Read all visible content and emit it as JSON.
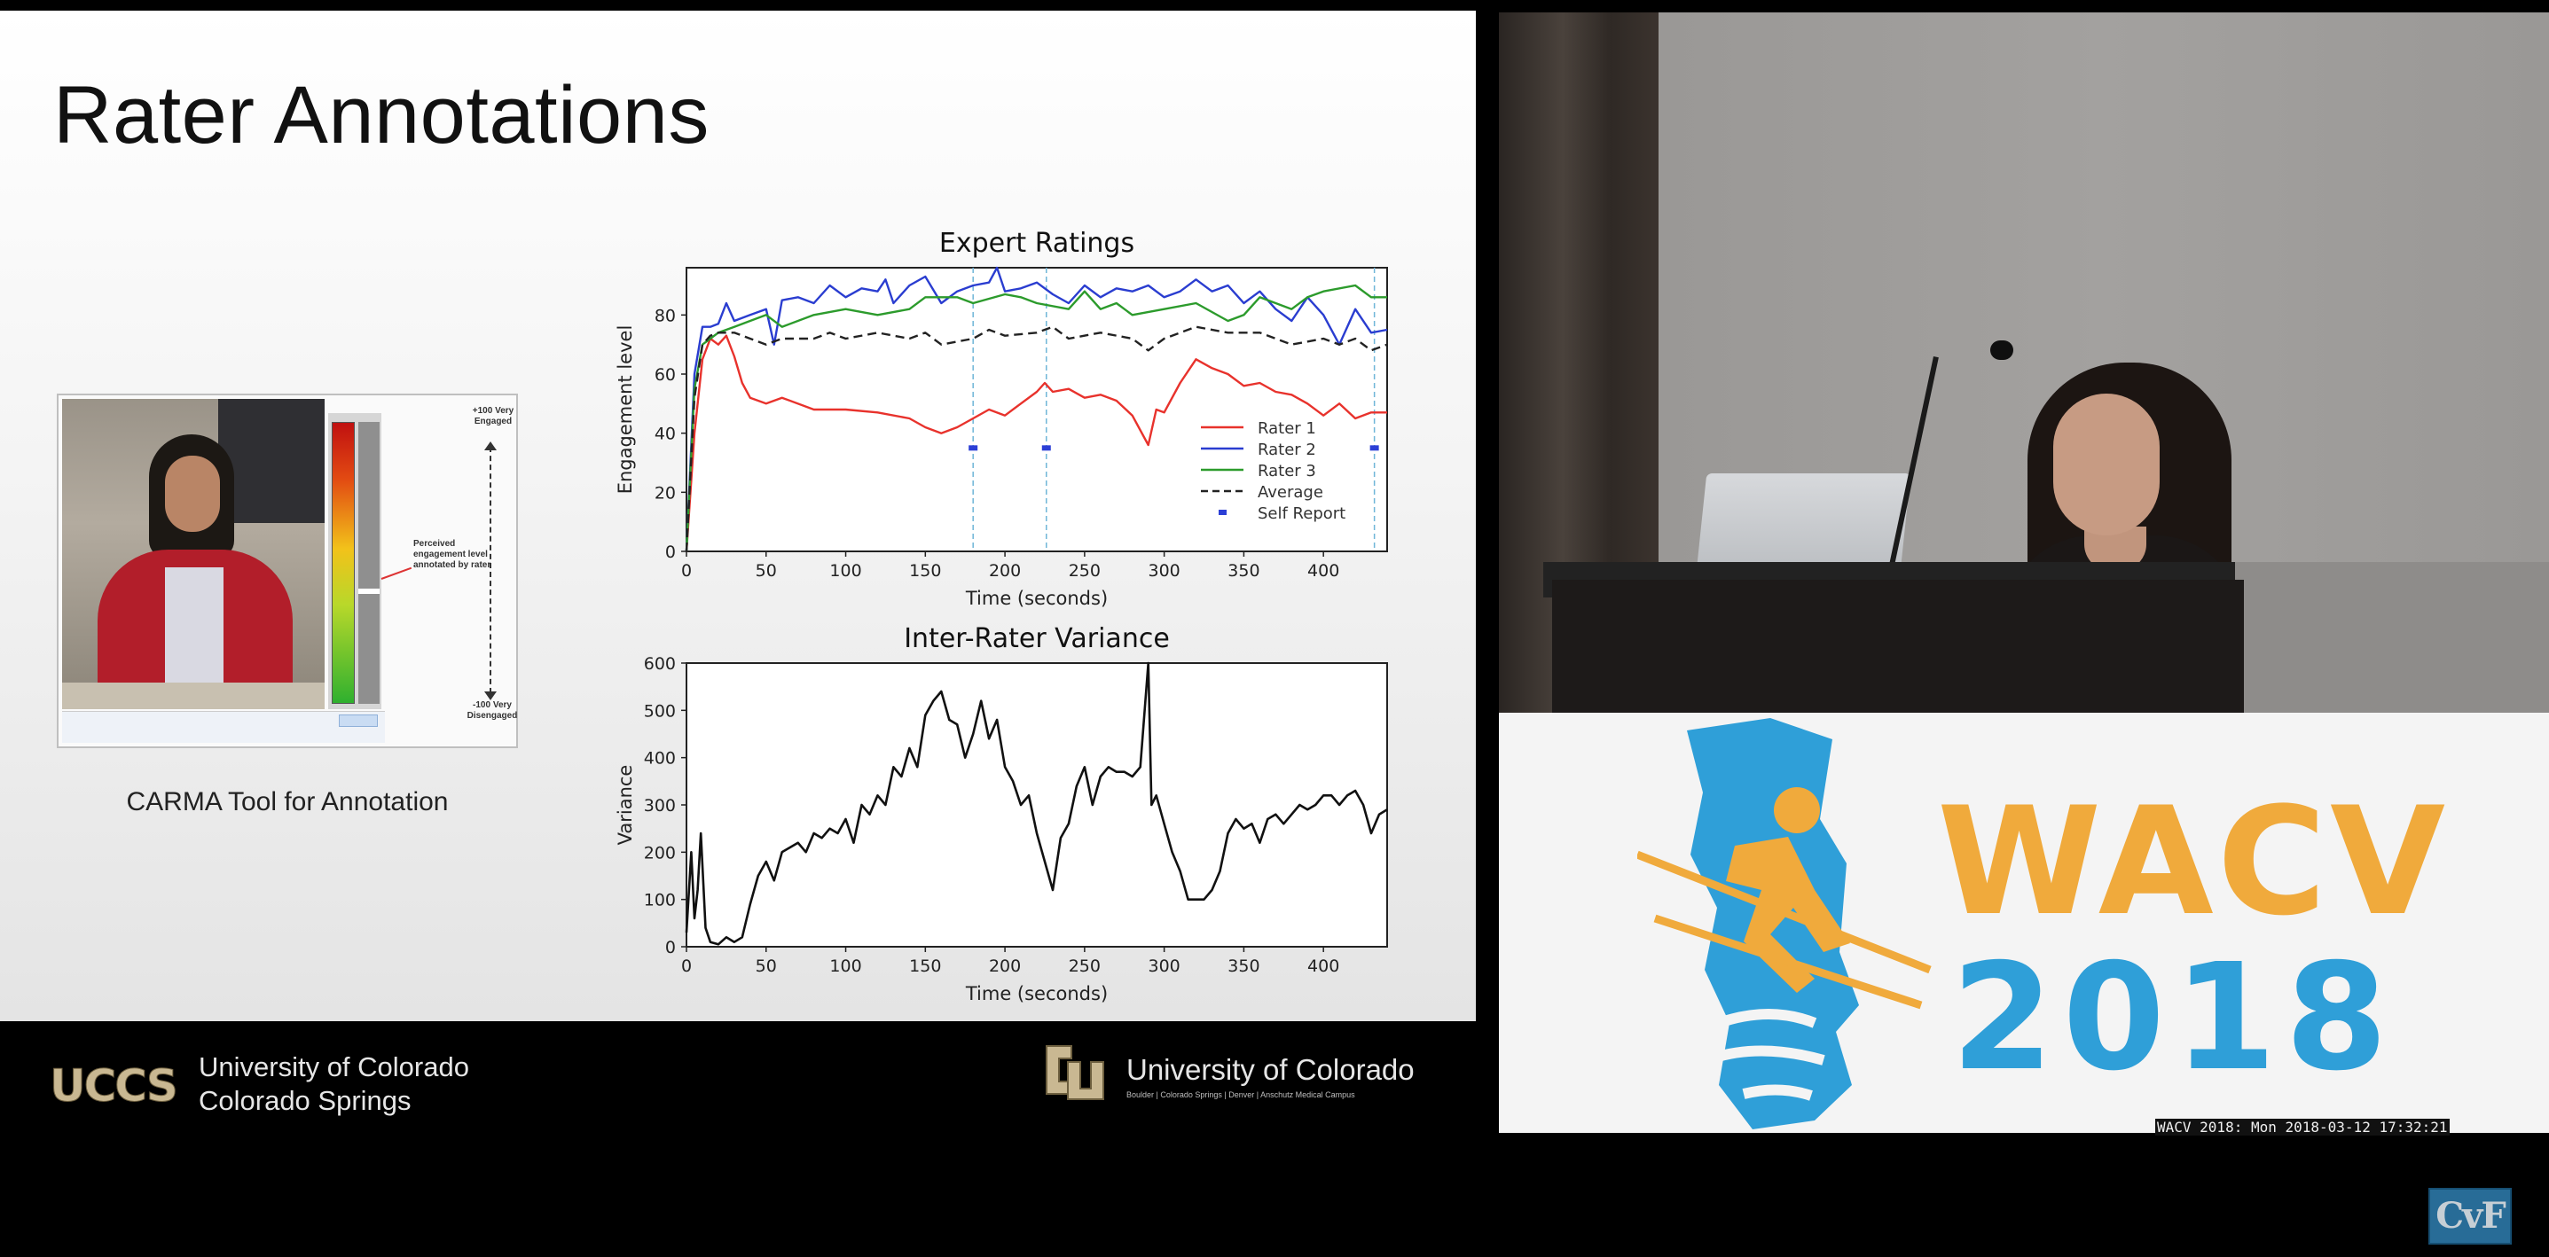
{
  "slide": {
    "title": "Rater Annotations",
    "carma": {
      "caption": "CARMA Tool for Annotation",
      "top_label": "+100 Very Engaged",
      "mid_label": "Perceived engagement level annotated by rater",
      "bottom_label": "-100 Very Disengaged"
    }
  },
  "chart_data": [
    {
      "type": "line",
      "title": "Expert Ratings",
      "xlabel": "Time (seconds)",
      "ylabel": "Engagement level",
      "xlim": [
        0,
        440
      ],
      "ylim": [
        0,
        96
      ],
      "xticks": [
        0,
        50,
        100,
        150,
        200,
        250,
        300,
        350,
        400
      ],
      "yticks": [
        0,
        20,
        40,
        60,
        80
      ],
      "legend_position": "bottom-right",
      "self_report": {
        "name": "Self Report",
        "color": "#2c3fd6",
        "x": [
          180,
          226,
          432
        ],
        "y": [
          35,
          35,
          35
        ]
      },
      "series": [
        {
          "name": "Rater 1",
          "color": "#e8322c",
          "style": "solid",
          "x": [
            0,
            5,
            10,
            15,
            20,
            25,
            30,
            35,
            40,
            50,
            60,
            80,
            100,
            120,
            140,
            150,
            160,
            170,
            180,
            190,
            200,
            210,
            220,
            225,
            230,
            240,
            250,
            260,
            270,
            280,
            290,
            295,
            300,
            310,
            320,
            330,
            340,
            350,
            360,
            370,
            380,
            390,
            400,
            410,
            420,
            430,
            440
          ],
          "y": [
            0,
            40,
            65,
            72,
            70,
            73,
            66,
            57,
            52,
            50,
            52,
            48,
            48,
            47,
            45,
            42,
            40,
            42,
            45,
            48,
            46,
            50,
            54,
            57,
            54,
            55,
            52,
            53,
            51,
            46,
            36,
            48,
            47,
            57,
            65,
            62,
            60,
            56,
            57,
            54,
            53,
            50,
            46,
            50,
            45,
            47,
            47
          ]
        },
        {
          "name": "Rater 2",
          "color": "#2a3dd0",
          "style": "solid",
          "x": [
            0,
            5,
            10,
            15,
            20,
            25,
            30,
            40,
            50,
            55,
            60,
            70,
            80,
            90,
            100,
            110,
            120,
            125,
            130,
            140,
            150,
            160,
            170,
            180,
            190,
            195,
            200,
            210,
            220,
            230,
            240,
            250,
            260,
            270,
            280,
            290,
            300,
            310,
            320,
            330,
            340,
            350,
            360,
            370,
            380,
            390,
            400,
            410,
            420,
            430,
            440
          ],
          "y": [
            0,
            60,
            76,
            76,
            77,
            84,
            78,
            80,
            82,
            70,
            85,
            86,
            84,
            90,
            86,
            89,
            88,
            92,
            84,
            90,
            93,
            84,
            88,
            90,
            91,
            96,
            88,
            89,
            91,
            87,
            84,
            90,
            86,
            89,
            88,
            90,
            86,
            88,
            92,
            88,
            90,
            84,
            88,
            82,
            78,
            86,
            80,
            70,
            82,
            74,
            75
          ]
        },
        {
          "name": "Rater 3",
          "color": "#2c9b2c",
          "style": "solid",
          "x": [
            0,
            5,
            10,
            15,
            20,
            30,
            40,
            50,
            60,
            80,
            100,
            120,
            140,
            150,
            170,
            180,
            200,
            210,
            220,
            240,
            250,
            260,
            270,
            280,
            300,
            320,
            340,
            350,
            360,
            380,
            390,
            400,
            420,
            430,
            440
          ],
          "y": [
            0,
            55,
            70,
            72,
            74,
            76,
            78,
            80,
            76,
            80,
            82,
            80,
            82,
            86,
            86,
            84,
            87,
            86,
            84,
            82,
            88,
            82,
            84,
            80,
            82,
            84,
            78,
            80,
            86,
            82,
            86,
            88,
            90,
            86,
            86
          ]
        },
        {
          "name": "Average",
          "color": "#222222",
          "style": "dashed",
          "x": [
            0,
            5,
            10,
            15,
            20,
            30,
            40,
            50,
            60,
            70,
            80,
            90,
            100,
            120,
            140,
            150,
            160,
            180,
            190,
            200,
            220,
            230,
            240,
            260,
            280,
            290,
            300,
            320,
            340,
            360,
            380,
            400,
            410,
            420,
            430,
            440
          ],
          "y": [
            0,
            52,
            70,
            73,
            74,
            74,
            72,
            70,
            72,
            72,
            72,
            74,
            72,
            74,
            72,
            74,
            70,
            72,
            75,
            73,
            74,
            76,
            72,
            74,
            72,
            68,
            72,
            76,
            74,
            74,
            70,
            72,
            70,
            72,
            68,
            70
          ]
        }
      ]
    },
    {
      "type": "line",
      "title": "Inter-Rater Variance",
      "xlabel": "Time (seconds)",
      "ylabel": "Variance",
      "xlim": [
        0,
        440
      ],
      "ylim": [
        0,
        600
      ],
      "xticks": [
        0,
        50,
        100,
        150,
        200,
        250,
        300,
        350,
        400
      ],
      "yticks": [
        0,
        100,
        200,
        300,
        400,
        500,
        600
      ],
      "series": [
        {
          "color": "#111111",
          "x": [
            0,
            3,
            5,
            7,
            9,
            12,
            15,
            20,
            25,
            30,
            35,
            40,
            45,
            50,
            55,
            60,
            65,
            70,
            75,
            80,
            85,
            90,
            95,
            100,
            105,
            110,
            115,
            120,
            125,
            130,
            135,
            140,
            145,
            150,
            155,
            160,
            165,
            170,
            175,
            180,
            185,
            190,
            195,
            200,
            205,
            210,
            215,
            220,
            225,
            230,
            235,
            240,
            245,
            250,
            255,
            260,
            265,
            270,
            275,
            280,
            285,
            290,
            292,
            295,
            300,
            305,
            310,
            315,
            320,
            325,
            330,
            335,
            340,
            345,
            350,
            355,
            360,
            365,
            370,
            375,
            380,
            385,
            390,
            395,
            400,
            405,
            410,
            415,
            420,
            425,
            430,
            435,
            440
          ],
          "y": [
            30,
            200,
            60,
            120,
            240,
            40,
            10,
            5,
            20,
            10,
            20,
            90,
            150,
            180,
            140,
            200,
            210,
            220,
            200,
            240,
            230,
            250,
            240,
            270,
            220,
            300,
            280,
            320,
            300,
            380,
            360,
            420,
            380,
            490,
            520,
            540,
            480,
            470,
            400,
            450,
            520,
            440,
            480,
            380,
            350,
            300,
            320,
            240,
            180,
            120,
            230,
            260,
            340,
            380,
            300,
            360,
            380,
            370,
            370,
            360,
            380,
            600,
            300,
            320,
            260,
            200,
            160,
            100,
            100,
            100,
            120,
            160,
            240,
            270,
            250,
            260,
            220,
            270,
            280,
            260,
            280,
            300,
            290,
            300,
            320,
            320,
            300,
            320,
            330,
            300,
            240,
            280,
            290
          ]
        }
      ]
    }
  ],
  "footer": {
    "uccs_mark": "UCCS",
    "uccs_line1": "University of Colorado",
    "uccs_line2": "Colorado Springs",
    "cu_line1": "University of Colorado",
    "cu_campuses": "Boulder | Colorado Springs | Denver | Anschutz Medical Campus"
  },
  "conference": {
    "wacv": "WACV",
    "year": "2018",
    "timestamp": "WACV 2018: Mon 2018-03-12 17:32:21",
    "watermark": "CvF"
  },
  "colors": {
    "wacv_orange": "#f0aa3c",
    "wacv_blue": "#2f9fd8",
    "cu_gold": "#c9b892"
  }
}
